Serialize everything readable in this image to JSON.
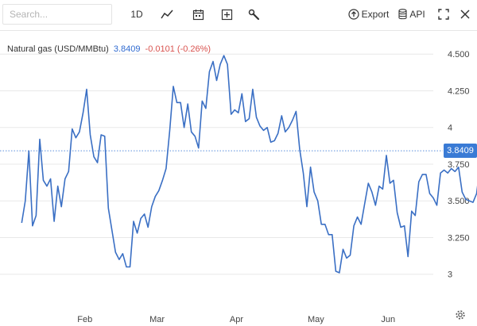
{
  "toolbar": {
    "search_placeholder": "Search...",
    "range_label": "1D",
    "chart_type_icon": "line-chart-icon",
    "calendar_icon": "calendar-icon",
    "add_icon": "plus-square-icon",
    "tools_icon": "wrench-icon",
    "export_label": "Export",
    "api_label": "API",
    "fullscreen_icon": "expand-icon",
    "close_icon": "close-icon",
    "settings_icon": "gear-icon"
  },
  "legend": {
    "name": "Natural gas (USD/MMBtu)",
    "last": "3.8409",
    "change": "-0.0101 (-0.26%)"
  },
  "chart_data": {
    "type": "line",
    "title": "",
    "xlabel": "",
    "ylabel": "",
    "ylim": [
      2.82,
      4.55
    ],
    "yticks": [
      3,
      3.25,
      3.5,
      3.75,
      4,
      4.25,
      4.5
    ],
    "ytick_labels": [
      "3",
      "3.250",
      "3.500",
      "3.750",
      "4",
      "4.250",
      "4.500"
    ],
    "x_month_labels": [
      "Feb",
      "Mar",
      "Apr",
      "May",
      "Jun"
    ],
    "x_month_positions": [
      17.5,
      37.5,
      59.5,
      81.5,
      101.5
    ],
    "x_range": [
      -6,
      114
    ],
    "grid": "horizontal",
    "last_value": 3.8409,
    "last_value_label": "3.8409",
    "line_color": "#3a6fc4",
    "series": [
      {
        "name": "Natural gas (USD/MMBtu)",
        "values": [
          3.35,
          3.5,
          3.84,
          3.33,
          3.4,
          3.92,
          3.64,
          3.6,
          3.65,
          3.36,
          3.6,
          3.46,
          3.65,
          3.7,
          3.99,
          3.93,
          3.97,
          4.1,
          4.26,
          3.95,
          3.8,
          3.76,
          3.95,
          3.94,
          3.45,
          3.3,
          3.15,
          3.1,
          3.14,
          3.05,
          3.05,
          3.36,
          3.28,
          3.38,
          3.41,
          3.32,
          3.46,
          3.53,
          3.57,
          3.64,
          3.72,
          3.98,
          4.28,
          4.17,
          4.17,
          4.0,
          4.16,
          3.97,
          3.94,
          3.86,
          4.18,
          4.13,
          4.38,
          4.45,
          4.32,
          4.43,
          4.49,
          4.43,
          4.09,
          4.12,
          4.1,
          4.23,
          4.04,
          4.06,
          4.26,
          4.07,
          4.01,
          3.98,
          4.0,
          3.9,
          3.91,
          3.96,
          4.08,
          3.97,
          4.0,
          4.05,
          4.11,
          3.85,
          3.69,
          3.46,
          3.73,
          3.56,
          3.5,
          3.34,
          3.34,
          3.27,
          3.27,
          3.02,
          3.01,
          3.17,
          3.11,
          3.13,
          3.33,
          3.39,
          3.34,
          3.48,
          3.62,
          3.56,
          3.47,
          3.6,
          3.58,
          3.81,
          3.62,
          3.64,
          3.42,
          3.32,
          3.33,
          3.12,
          3.43,
          3.4,
          3.63,
          3.68,
          3.68,
          3.55,
          3.52,
          3.47,
          3.69,
          3.71,
          3.69,
          3.72,
          3.7,
          3.73,
          3.56,
          3.51,
          3.5,
          3.49,
          3.55,
          3.74,
          3.84,
          3.84
        ]
      }
    ]
  }
}
